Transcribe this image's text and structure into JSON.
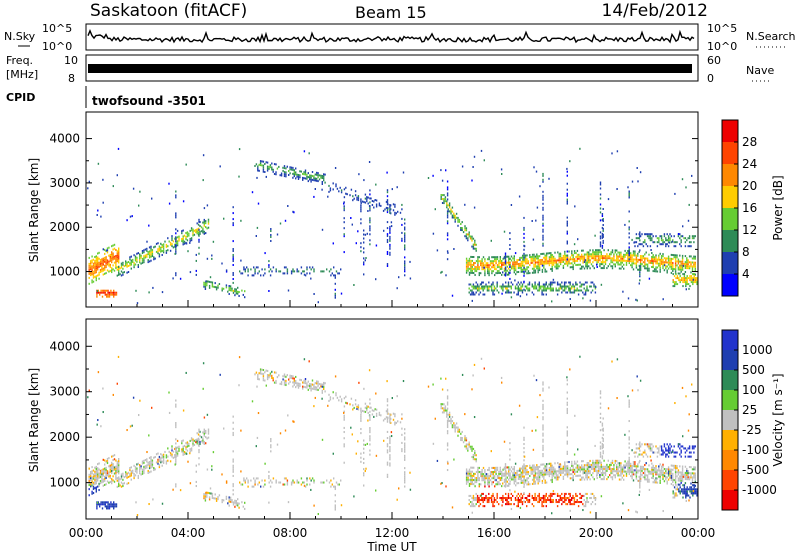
{
  "header": {
    "title": "Saskatoon (fitACF)",
    "beam": "Beam 15",
    "date": "14/Feb/2012"
  },
  "noise_panel": {
    "left_label": "N.Sky",
    "right_label": "N.Search",
    "ticks": [
      "10^5",
      "10^0"
    ]
  },
  "freq_panel": {
    "left_label_1": "Freq.",
    "left_label_2": "[MHz]",
    "right_label": "Nave",
    "left_ticks": [
      "10",
      "8"
    ],
    "right_ticks": [
      "60",
      "0"
    ]
  },
  "cpid_panel": {
    "label": "CPID",
    "text": "twofsound  -3501"
  },
  "colors": {
    "power": [
      "#0000ff",
      "#1f3fb0",
      "#2e8b57",
      "#66cc33",
      "#ffcc00",
      "#ff8800",
      "#ff4400",
      "#ee0000"
    ],
    "velocity": [
      "#ee0000",
      "#ff4400",
      "#ff8800",
      "#ffb000",
      "#c0c0c0",
      "#66cc33",
      "#2e8b57",
      "#1f3fb0",
      "#2233cc"
    ]
  },
  "chart_data": [
    {
      "type": "heatmap",
      "title": "Power",
      "ylabel": "Slant Range [km]",
      "xlabel": "",
      "ylim": [
        200,
        4600
      ],
      "yticks": [
        "1000",
        "2000",
        "3000",
        "4000"
      ],
      "yticks_values": [
        1000,
        2000,
        3000,
        4000
      ],
      "xlim": [
        0,
        24
      ],
      "colorbar": {
        "label": "Power [dB]",
        "ticks": [
          "4",
          "8",
          "12",
          "16",
          "20",
          "24",
          "28"
        ],
        "tick_values": [
          4,
          8,
          12,
          16,
          20,
          24,
          28
        ],
        "range": [
          0,
          32
        ]
      }
    },
    {
      "type": "heatmap",
      "title": "Velocity",
      "ylabel": "Slant Range [km]",
      "xlabel": "Time UT",
      "ylim": [
        200,
        4600
      ],
      "yticks": [
        "1000",
        "2000",
        "3000",
        "4000"
      ],
      "yticks_values": [
        1000,
        2000,
        3000,
        4000
      ],
      "xlim": [
        0,
        24
      ],
      "xticks": [
        "00:00",
        "04:00",
        "08:00",
        "12:00",
        "16:00",
        "20:00",
        "00:00"
      ],
      "xticks_values": [
        0,
        4,
        8,
        12,
        16,
        20,
        24
      ],
      "colorbar": {
        "label": "Velocity [m s⁻¹]",
        "ticks": [
          "1000",
          "500",
          "100",
          "25",
          "-25",
          "-100",
          "-500",
          "-1000"
        ]
      }
    }
  ]
}
